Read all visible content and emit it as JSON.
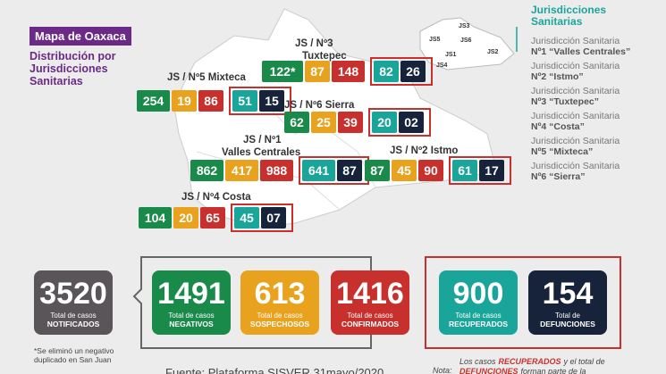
{
  "header": {
    "title": "Mapa de Oaxaca",
    "subtitle": [
      "Distribución por",
      "Jurisdicciones",
      "Sanitarias"
    ]
  },
  "jurisdictions": [
    {
      "label": [
        "JS / Nº3",
        "Tuxtepec"
      ],
      "values": [
        "122*",
        87,
        148,
        82,
        26
      ]
    },
    {
      "label": [
        "JS / Nº5 Mixteca"
      ],
      "values": [
        254,
        19,
        86,
        51,
        15
      ]
    },
    {
      "label": [
        "JS / Nº6 Sierra"
      ],
      "values": [
        62,
        25,
        39,
        20,
        "02"
      ]
    },
    {
      "label": [
        "JS / Nº1",
        "Valles Centrales"
      ],
      "values": [
        862,
        417,
        988,
        641,
        87
      ]
    },
    {
      "label": [
        "JS / Nº2 Istmo"
      ],
      "values": [
        87,
        45,
        90,
        61,
        17
      ]
    },
    {
      "label": [
        "JS / Nº4 Costa"
      ],
      "values": [
        104,
        20,
        65,
        45,
        "07"
      ]
    }
  ],
  "minimap": [
    "JS3",
    "JS5",
    "JS6",
    "JS1",
    "JS2",
    "JS4"
  ],
  "legend": {
    "title": [
      "Jurisdicciones",
      "Sanitarias"
    ],
    "items": [
      [
        "Jurisdicción Sanitaria",
        "Nº1 “Valles Centrales”"
      ],
      [
        "Jurisdicción Sanitaria",
        "Nº2 “Istmo”"
      ],
      [
        "Jurisdicción Sanitaria",
        "Nº3 “Tuxtepec”"
      ],
      [
        "Jurisdicción Sanitaria",
        "Nº4 “Costa”"
      ],
      [
        "Jurisdicción Sanitaria",
        "Nº5 “Mixteca”"
      ],
      [
        "Jurisdicción Sanitaria",
        "Nº6 “Sierra”"
      ]
    ]
  },
  "totals": [
    {
      "value": 3520,
      "caption": "Total de casos",
      "name": "NOTIFICADOS"
    },
    {
      "value": 1491,
      "caption": "Total de casos",
      "name": "NEGATIVOS"
    },
    {
      "value": 613,
      "caption": "Total de casos",
      "name": "SOSPECHOSOS"
    },
    {
      "value": 1416,
      "caption": "Total de casos",
      "name": "CONFIRMADOS"
    },
    {
      "value": 900,
      "caption": "Total de casos",
      "name": "RECUPERADOS"
    },
    {
      "value": 154,
      "caption": "Total de",
      "name": "DEFUNCIONES"
    }
  ],
  "footnote": [
    "*Se eliminó un negativo",
    "duplicado en San Juan"
  ],
  "source": "Fuente: Plataforma SISVER 31mayo/2020",
  "note": {
    "label": "Nota:",
    "line1": [
      "Los casos",
      "RECUPERADOS",
      "y el total de"
    ],
    "line2": [
      "DEFUNCIONES",
      "forman parte de la"
    ]
  }
}
